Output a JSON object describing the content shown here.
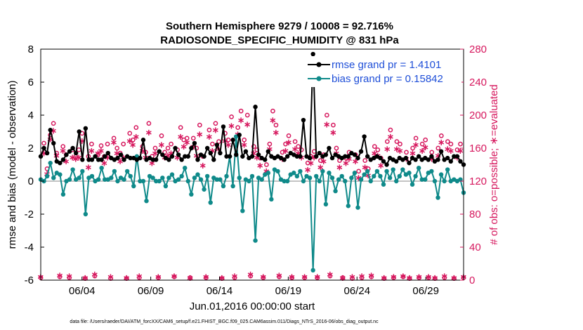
{
  "chart_data": {
    "type": "line",
    "title": "Southern Hemisphere 9279 / 10008 = 92.716%",
    "subtitle": "RADIOSONDE_SPECIFIC_HUMIDITY @ 831 hPa",
    "ylabel_left": "rmse and bias (model - observation)",
    "ylabel_right": "# of obs: o=possible; ∗=evaluated",
    "xlabel": "Jun.01,2016 00:00:00 start",
    "footer": "data file: /Users/raeder/DAI/ATM_forcXX/CAM6_setup/f.e21.FHIST_BGC.f09_025.CAM6assim.011/Diags_NTrS_2016-06/obs_diag_output.nc",
    "xlim": [
      0,
      30.75
    ],
    "ylim_left": [
      -6,
      8
    ],
    "ylim_right": [
      0,
      280
    ],
    "yticks_left": [
      -6,
      -4,
      -2,
      0,
      2,
      4,
      6,
      8
    ],
    "yticks_right": [
      0,
      40,
      80,
      120,
      160,
      200,
      240,
      280
    ],
    "xticks": [
      {
        "x": 3,
        "label": "06/04"
      },
      {
        "x": 8,
        "label": "06/09"
      },
      {
        "x": 13,
        "label": "06/14"
      },
      {
        "x": 18,
        "label": "06/19"
      },
      {
        "x": 23,
        "label": "06/24"
      },
      {
        "x": 28,
        "label": "06/29"
      }
    ],
    "zero_line": 0,
    "colors": {
      "rmse": "#000000",
      "bias": "#0f8a8a",
      "counts": "#d6185e",
      "zero": "#b0b0b0",
      "legend_text": "#1f4fd8"
    },
    "series": [
      {
        "name": "rmse grand pr = 1.4101",
        "values": [
          1.5,
          2.0,
          1.7,
          3.1,
          2.3,
          1.2,
          1.1,
          1.3,
          1.6,
          1.8,
          2.0,
          1.7,
          3.0,
          1.3,
          3.2,
          1.3,
          1.3,
          1.5,
          1.3,
          1.3,
          1.5,
          1.7,
          1.4,
          1.3,
          1.4,
          1.6,
          1.3,
          1.5,
          1.4,
          1.4,
          1.3,
          1.4,
          2.5,
          1.3,
          1.4,
          1.3,
          1.3,
          1.8,
          1.6,
          1.4,
          1.3,
          1.5,
          2.0,
          1.6,
          1.3,
          1.5,
          1.5,
          2.0,
          2.3,
          1.3,
          1.6,
          1.5,
          2.0,
          1.7,
          1.3,
          2.2,
          1.7,
          3.3,
          1.5,
          1.5,
          2.5,
          1.6,
          2.8,
          1.5,
          1.8,
          1.4,
          1.5,
          4.5,
          1.6,
          1.4,
          1.3,
          1.8,
          1.5,
          1.4,
          1.5,
          1.4,
          1.3,
          1.5,
          1.7,
          1.6,
          1.5,
          1.5,
          3.7,
          1.5,
          1.4,
          7.7,
          1.5,
          1.7,
          1.5,
          1.6,
          2.0,
          1.4,
          1.6,
          1.5,
          1.4,
          1.5,
          1.5,
          1.7,
          1.6,
          1.4,
          1.8,
          2.7,
          1.5,
          1.3,
          1.4,
          1.5,
          1.4,
          1.2,
          1.0,
          1.4,
          1.3,
          1.2,
          1.4,
          1.3,
          1.4,
          1.1,
          1.4,
          1.3,
          1.5,
          1.3,
          1.4,
          1.3,
          1.5,
          1.2,
          1.3,
          1.8,
          1.3,
          1.4,
          1.2,
          1.5,
          1.5,
          1.2,
          1.0
        ]
      },
      {
        "name": "bias grand pr = 0.15842",
        "values": [
          0.1,
          0.0,
          0.3,
          1.1,
          0.2,
          0.5,
          0.4,
          -0.8,
          0.0,
          0.1,
          0.7,
          0.1,
          0.2,
          0.6,
          -2.0,
          0.2,
          0.3,
          0.0,
          0.1,
          0.8,
          0.1,
          0.1,
          0.2,
          0.6,
          0.0,
          0.2,
          0.1,
          0.6,
          0.3,
          -0.3,
          1.5,
          0.0,
          0.0,
          -1.2,
          0.3,
          0.2,
          0.0,
          0.0,
          0.2,
          -0.3,
          0.2,
          0.4,
          0.0,
          0.1,
          0.3,
          0.8,
          0.0,
          -0.8,
          0.2,
          0.4,
          0.1,
          -0.5,
          0.3,
          -1.3,
          0.2,
          0.1,
          0.1,
          -0.3,
          0.3,
          1.5,
          -0.3,
          2.7,
          0.2,
          -1.8,
          0.1,
          0.0,
          0.3,
          -3.6,
          0.2,
          0.1,
          0.4,
          0.5,
          -1.1,
          0.7,
          0.6,
          0.1,
          0.0,
          0.0,
          0.4,
          0.5,
          0.3,
          0.6,
          0.0,
          0.3,
          0.2,
          -5.4,
          0.3,
          0.0,
          0.6,
          -1.4,
          0.5,
          0.2,
          -0.6,
          0.1,
          0.3,
          0.0,
          -1.5,
          0.2,
          0.5,
          -1.6,
          0.1,
          0.4,
          0.6,
          0.0,
          0.3,
          0.6,
          0.3,
          -0.2,
          0.6,
          0.2,
          0.7,
          0.0,
          0.3,
          0.7,
          0.4,
          0.5,
          -0.2,
          0.3,
          0.8,
          0.1,
          0.1,
          0.5,
          0.6,
          0.0,
          -1.0,
          0.4,
          0.0,
          0.7,
          0.0,
          0.1,
          0.0,
          0.1,
          -0.7
        ]
      },
      {
        "name": "obs possible",
        "marker": "circle",
        "values": [
          3,
          166,
          135,
          176,
          190,
          154,
          4,
          162,
          152,
          3,
          158,
          150,
          158,
          178,
          2,
          150,
          165,
          5,
          152,
          163,
          150,
          165,
          2,
          172,
          160,
          154,
          165,
          2,
          178,
          170,
          185,
          3,
          162,
          155,
          190,
          150,
          160,
          3,
          175,
          155,
          160,
          165,
          4,
          158,
          185,
          170,
          172,
          3,
          172,
          160,
          188,
          150,
          3,
          182,
          165,
          190,
          168,
          2,
          178,
          170,
          198,
          3,
          185,
          205,
          170,
          200,
          5,
          162,
          158,
          148,
          3,
          140,
          165,
          205,
          188,
          4,
          155,
          165,
          175,
          3,
          168,
          162,
          158,
          3,
          142,
          150,
          156,
          3,
          145,
          152,
          200,
          5,
          188,
          160,
          145,
          3,
          148,
          155,
          2,
          152,
          132,
          3,
          145,
          135,
          4,
          162,
          158,
          148,
          2,
          168,
          182,
          3,
          168,
          165,
          4,
          155,
          2,
          160,
          172,
          3,
          165,
          170,
          3,
          155,
          2,
          160,
          175,
          3,
          168,
          165,
          2,
          158,
          165,
          3
        ]
      },
      {
        "name": "obs evaluated",
        "marker": "asterisk",
        "values": [
          5,
          155,
          130,
          172,
          182,
          152,
          7,
          158,
          145,
          6,
          150,
          148,
          150,
          170,
          4,
          138,
          158,
          8,
          155,
          158,
          143,
          150,
          5,
          168,
          155,
          145,
          150,
          4,
          170,
          165,
          175,
          6,
          158,
          150,
          180,
          143,
          155,
          5,
          165,
          150,
          152,
          155,
          6,
          150,
          175,
          163,
          168,
          4,
          163,
          152,
          178,
          140,
          5,
          175,
          158,
          183,
          160,
          4,
          170,
          165,
          188,
          6,
          178,
          195,
          165,
          190,
          8,
          155,
          150,
          140,
          5,
          133,
          160,
          195,
          180,
          7,
          148,
          158,
          168,
          5,
          160,
          155,
          150,
          5,
          135,
          143,
          150,
          5,
          138,
          145,
          190,
          8,
          180,
          155,
          138,
          4,
          143,
          148,
          5,
          145,
          125,
          6,
          138,
          128,
          7,
          155,
          152,
          140,
          4,
          160,
          175,
          5,
          160,
          158,
          6,
          148,
          4,
          155,
          165,
          5,
          158,
          162,
          5,
          148,
          4,
          152,
          168,
          6,
          160,
          158,
          4,
          150,
          158,
          5
        ]
      }
    ]
  }
}
